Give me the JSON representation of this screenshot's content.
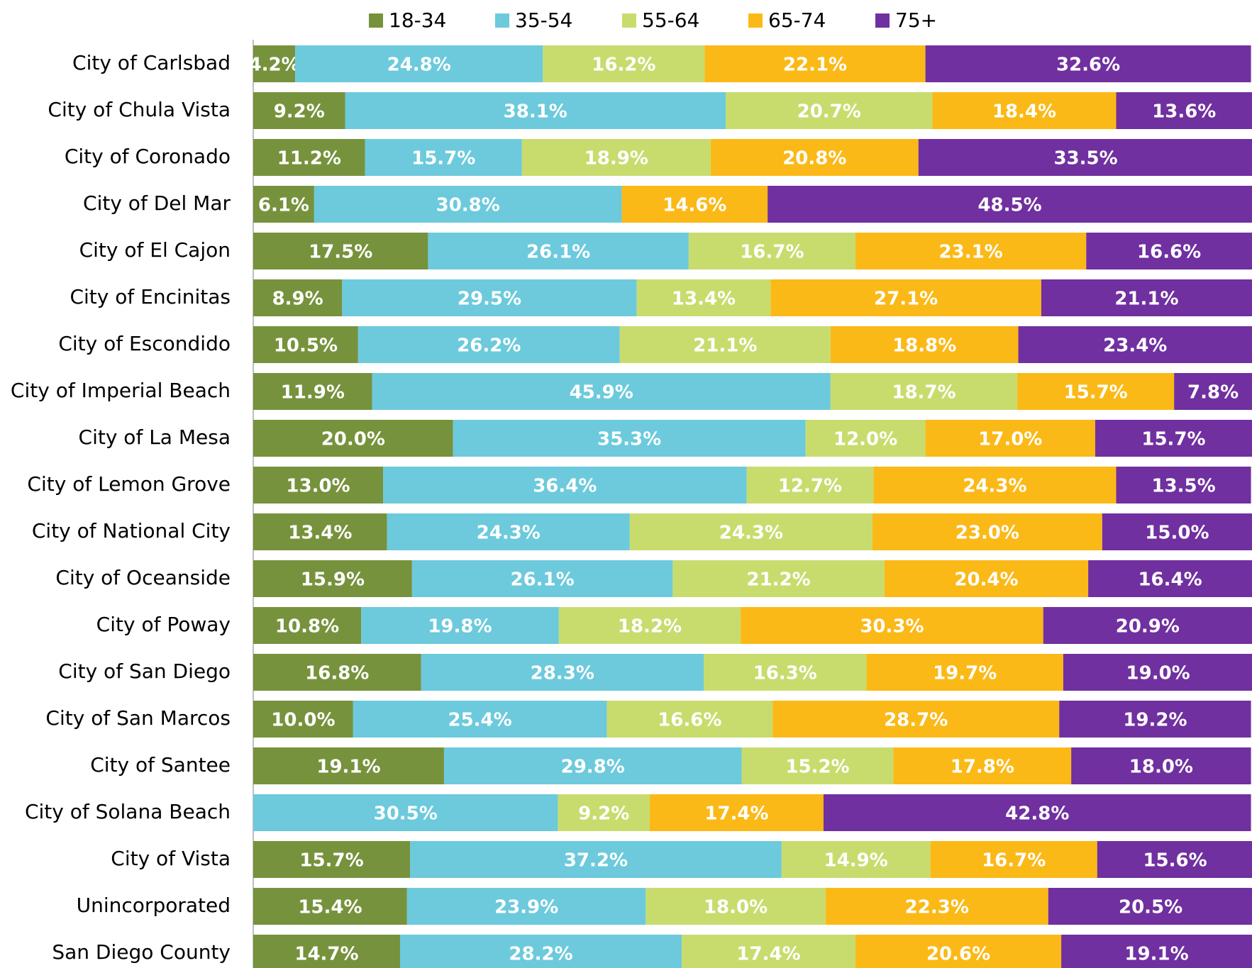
{
  "chart_data": {
    "type": "stacked_bar_horizontal",
    "categories": [
      "City of Carlsbad",
      "City of Chula Vista",
      "City of Coronado",
      "City of Del Mar",
      "City of El Cajon",
      "City of Encinitas",
      "City of Escondido",
      "City of Imperial Beach",
      "City of La Mesa",
      "City of Lemon Grove",
      "City of National City",
      "City of Oceanside",
      "City of Poway",
      "City of San Diego",
      "City of San Marcos",
      "City of Santee",
      "City of Solana Beach",
      "City of Vista",
      "Unincorporated",
      "San Diego County"
    ],
    "series": [
      {
        "name": "18-34",
        "color": "#77923c",
        "values": [
          4.2,
          9.2,
          11.2,
          6.1,
          17.5,
          8.9,
          10.5,
          11.9,
          20.0,
          13.0,
          13.4,
          15.9,
          10.8,
          16.8,
          10.0,
          19.1,
          null,
          15.7,
          15.4,
          14.7
        ],
        "value_labels": [
          "4.2%",
          "9.2%",
          "11.2%",
          "6.1%",
          "17.5%",
          "8.9%",
          "10.5%",
          "11.9%",
          "20.0%",
          "13.0%",
          "13.4%",
          "15.9%",
          "10.8%",
          "16.8%",
          "10.0%",
          "19.1%",
          null,
          "15.7%",
          "15.4%",
          "14.7%"
        ]
      },
      {
        "name": "35-54",
        "color": "#6ccadc",
        "values": [
          24.8,
          38.1,
          15.7,
          30.8,
          26.1,
          29.5,
          26.2,
          45.9,
          35.3,
          36.4,
          24.3,
          26.1,
          19.8,
          28.3,
          25.4,
          29.8,
          30.5,
          37.2,
          23.9,
          28.2
        ],
        "value_labels": [
          "24.8%",
          "38.1%",
          "15.7%",
          "30.8%",
          "26.1%",
          "29.5%",
          "26.2%",
          "45.9%",
          "35.3%",
          "36.4%",
          "24.3%",
          "26.1%",
          "19.8%",
          "28.3%",
          "25.4%",
          "29.8%",
          "30.5%",
          "37.2%",
          "23.9%",
          "28.2%"
        ]
      },
      {
        "name": "55-64",
        "color": "#c8dc6e",
        "values": [
          16.2,
          20.7,
          18.9,
          null,
          16.7,
          13.4,
          21.1,
          18.7,
          12.0,
          12.7,
          24.3,
          21.2,
          18.2,
          16.3,
          16.6,
          15.2,
          9.2,
          14.9,
          18.0,
          17.4
        ],
        "value_labels": [
          "16.2%",
          "20.7%",
          "18.9%",
          null,
          "16.7%",
          "13.4%",
          "21.1%",
          "18.7%",
          "12.0%",
          "12.7%",
          "24.3%",
          "21.2%",
          "18.2%",
          "16.3%",
          "16.6%",
          "15.2%",
          "9.2%",
          "14.9%",
          "18.0%",
          "17.4%"
        ]
      },
      {
        "name": "65-74",
        "color": "#fbb917",
        "values": [
          22.1,
          18.4,
          20.8,
          14.6,
          23.1,
          27.1,
          18.8,
          15.7,
          17.0,
          24.3,
          23.0,
          20.4,
          30.3,
          19.7,
          28.7,
          17.8,
          17.4,
          16.7,
          22.3,
          20.6
        ],
        "value_labels": [
          "22.1%",
          "18.4%",
          "20.8%",
          "14.6%",
          "23.1%",
          "27.1%",
          "18.8%",
          "15.7%",
          "17.0%",
          "24.3%",
          "23.0%",
          "20.4%",
          "30.3%",
          "19.7%",
          "28.7%",
          "17.8%",
          "17.4%",
          "16.7%",
          "22.3%",
          "20.6%"
        ]
      },
      {
        "name": "75+",
        "color": "#7030a0",
        "values": [
          32.6,
          13.6,
          33.5,
          48.5,
          16.6,
          21.1,
          23.4,
          7.8,
          15.7,
          13.5,
          15.0,
          16.4,
          20.9,
          19.0,
          19.2,
          18.0,
          42.8,
          15.6,
          20.5,
          19.1
        ],
        "value_labels": [
          "32.6%",
          "13.6%",
          "33.5%",
          "48.5%",
          "16.6%",
          "21.1%",
          "23.4%",
          "7.8%",
          "15.7%",
          "13.5%",
          "15.0%",
          "16.4%",
          "20.9%",
          "19.0%",
          "19.2%",
          "18.0%",
          "42.8%",
          "15.6%",
          "20.5%",
          "19.1%"
        ]
      }
    ],
    "xlim": [
      0,
      100
    ],
    "legend": "top"
  }
}
